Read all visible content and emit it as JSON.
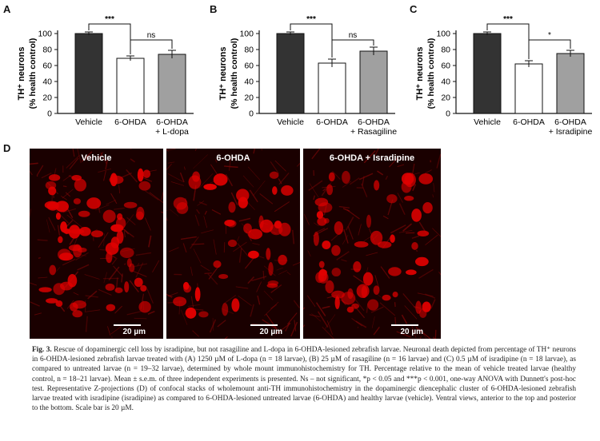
{
  "panels": {
    "A": "A",
    "B": "B",
    "C": "C",
    "D": "D"
  },
  "chart_data": [
    {
      "type": "bar",
      "ylabel_line1": "TH⁺ neurons",
      "ylabel_line2": "(% health control)",
      "ylim": [
        0,
        100
      ],
      "yticks": [
        "0",
        "20",
        "40",
        "60",
        "80",
        "100"
      ],
      "categories": [
        [
          "Vehicle"
        ],
        [
          "6-OHDA"
        ],
        [
          "6-OHDA",
          "+ L-dopa"
        ]
      ],
      "values": [
        100,
        69,
        74
      ],
      "errors": [
        2,
        3,
        5
      ],
      "colors": [
        "#333333",
        "#ffffff",
        "#a0a0a0"
      ],
      "sig_top": "***",
      "sig_second": "ns"
    },
    {
      "type": "bar",
      "ylabel_line1": "TH⁺ neurons",
      "ylabel_line2": "(% health control)",
      "ylim": [
        0,
        100
      ],
      "yticks": [
        "0",
        "20",
        "40",
        "60",
        "80",
        "100"
      ],
      "categories": [
        [
          "Vehicle"
        ],
        [
          "6-OHDA"
        ],
        [
          "6-OHDA",
          "+ Rasagiline"
        ]
      ],
      "values": [
        100,
        63,
        78
      ],
      "errors": [
        2,
        5,
        5
      ],
      "colors": [
        "#333333",
        "#ffffff",
        "#a0a0a0"
      ],
      "sig_top": "***",
      "sig_second": "ns"
    },
    {
      "type": "bar",
      "ylabel_line1": "TH⁺ neurons",
      "ylabel_line2": "(% health control)",
      "ylim": [
        0,
        100
      ],
      "yticks": [
        "0",
        "20",
        "40",
        "60",
        "80",
        "100"
      ],
      "categories": [
        [
          "Vehicle"
        ],
        [
          "6-OHDA"
        ],
        [
          "6-OHDA",
          "+ Isradipine"
        ]
      ],
      "values": [
        100,
        62,
        75
      ],
      "errors": [
        2,
        4,
        4
      ],
      "colors": [
        "#333333",
        "#ffffff",
        "#a0a0a0"
      ],
      "sig_top": "***",
      "sig_second": "*"
    }
  ],
  "micrographs": [
    {
      "title": "Vehicle",
      "scale": "20 µm"
    },
    {
      "title": "6-OHDA",
      "scale": "20 µm"
    },
    {
      "title": "6-OHDA + Isradipine",
      "scale": "20 µm"
    }
  ],
  "caption": {
    "label": "Fig. 3.",
    "text": " Rescue of dopaminergic cell loss by isradipine, but not rasagiline and L-dopa in 6-OHDA-lesioned zebrafish larvae. Neuronal death depicted from percentage of TH⁺ neurons in 6-OHDA-lesioned zebrafish larvae treated with (A) 1250 µM of L-dopa (n = 18 larvae), (B) 25 µM of rasagiline (n = 16 larvae) and (C) 0.5 µM of isradipine (n = 18 larvae), as compared to untreated larvae (n = 19–32 larvae), determined by whole mount immunohistochemistry for TH. Percentage relative to the mean of vehicle treated larvae (healthy control, n = 18–21 larvae). Mean ± s.e.m. of three independent experiments is presented. Ns – not significant, *p < 0.05 and ***p < 0.001, one-way ANOVA with Dunnett's post-hoc test. Representative Z-projections (D) of confocal stacks of wholemount anti-TH immunohistochemistry in the dopaminergic diencephalic cluster of 6-OHDA-lesioned zebrafish larvae treated with isradipine (isradipine) as compared to 6-OHDA-lesioned untreated larvae (6-OHDA) and healthy larvae (vehicle). Ventral views, anterior to the top and posterior to the bottom. Scale bar is 20 µM."
  }
}
